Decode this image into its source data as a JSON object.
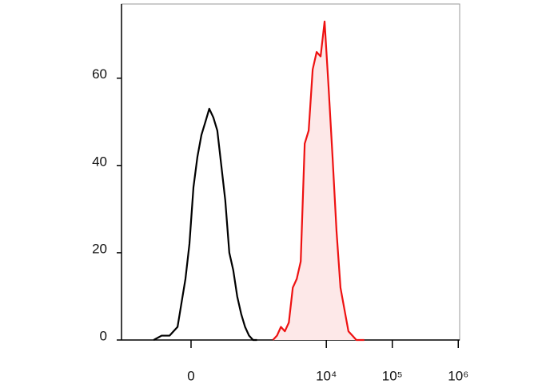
{
  "chart_data": {
    "type": "line",
    "xscale": "logicle",
    "xlim": [
      -1000,
      1050000
    ],
    "ylim": [
      0,
      77
    ],
    "xticks": [
      0,
      {
        "value": 10000,
        "label": "10⁴"
      },
      {
        "value": 100000,
        "label": "10⁵"
      },
      {
        "value": 1000000,
        "label": "10⁶"
      }
    ],
    "yticks": [
      0,
      20,
      40,
      60
    ],
    "series": [
      {
        "color": "#000000",
        "fill": false,
        "x": [
          -304,
          -217,
          -146,
          -87,
          -35,
          -10,
          15,
          40,
          66,
          93,
          121,
          153,
          187,
          225,
          267,
          315,
          368,
          428,
          496,
          573,
          662,
          765,
          881
        ],
        "values": [
          0,
          1,
          1,
          3,
          14,
          22,
          35,
          42,
          47,
          50,
          53,
          51,
          48,
          40,
          32,
          20,
          16,
          10,
          6,
          3,
          1,
          0,
          0
        ]
      },
      {
        "color": "#ee1111",
        "fill": true,
        "fill_color": "#fde8e8",
        "x": [
          1545,
          1782,
          2046,
          2350,
          2700,
          3100,
          3560,
          4090,
          4700,
          5400,
          6210,
          7130,
          8190,
          9410,
          10810,
          12420,
          14270,
          16390,
          18820,
          21630,
          24850,
          28550,
          32760,
          37640
        ],
        "values": [
          0,
          1,
          3,
          2,
          4,
          12,
          14,
          18,
          45,
          48,
          62,
          66,
          65,
          73,
          58,
          42,
          25,
          12,
          7,
          2,
          1,
          0,
          0,
          0
        ]
      }
    ]
  }
}
